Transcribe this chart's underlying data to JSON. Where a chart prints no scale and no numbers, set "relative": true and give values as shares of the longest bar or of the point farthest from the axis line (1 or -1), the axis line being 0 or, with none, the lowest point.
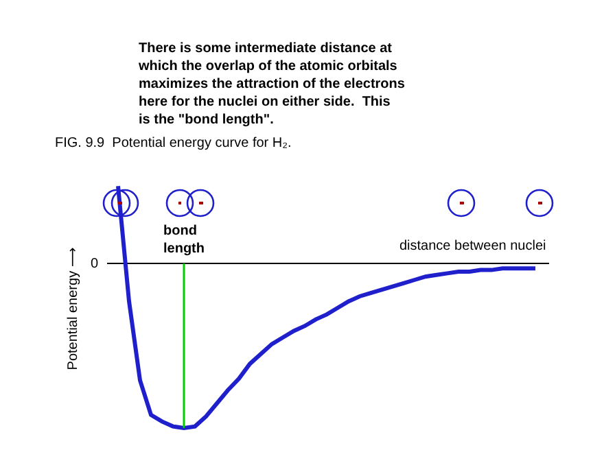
{
  "chart_data": {
    "type": "line",
    "relative": true,
    "title": "FIG. 9.9  Potential energy curve for H₂.",
    "xlabel": "distance between nuclei",
    "ylabel": "Potential energy ⟶",
    "annotations": [
      "There is some intermediate distance at\nwhich the overlap of the atomic orbitals\nmaximizes the attraction of the electrons\nhere for the nuclei on either side.  This\nis the \"bond length\".",
      "0",
      "bond\nlength"
    ],
    "categories": [
      null,
      null,
      null,
      null,
      null,
      null,
      null,
      null,
      null,
      null,
      null,
      null,
      null,
      null,
      null,
      null,
      null,
      null,
      null,
      null,
      null,
      null,
      null,
      null,
      null,
      null,
      null,
      null,
      null,
      null,
      null,
      null,
      null,
      null,
      null,
      null,
      null,
      null,
      null
    ],
    "series": [
      {
        "color": "#1f1fcc",
        "values": [
          0.47,
          -0.23,
          -0.71,
          -0.92,
          -0.96,
          -0.99,
          -1.0,
          -0.99,
          -0.93,
          -0.85,
          -0.77,
          -0.7,
          -0.61,
          -0.55,
          -0.49,
          -0.45,
          -0.41,
          -0.38,
          -0.34,
          -0.31,
          -0.27,
          -0.23,
          -0.2,
          -0.18,
          -0.16,
          -0.14,
          -0.12,
          -0.1,
          -0.08,
          -0.07,
          -0.06,
          -0.05,
          -0.05,
          -0.04,
          -0.04,
          -0.03,
          -0.03,
          -0.03,
          -0.03
        ]
      }
    ],
    "grid": false,
    "marker": "none",
    "line_style": "solid"
  }
}
